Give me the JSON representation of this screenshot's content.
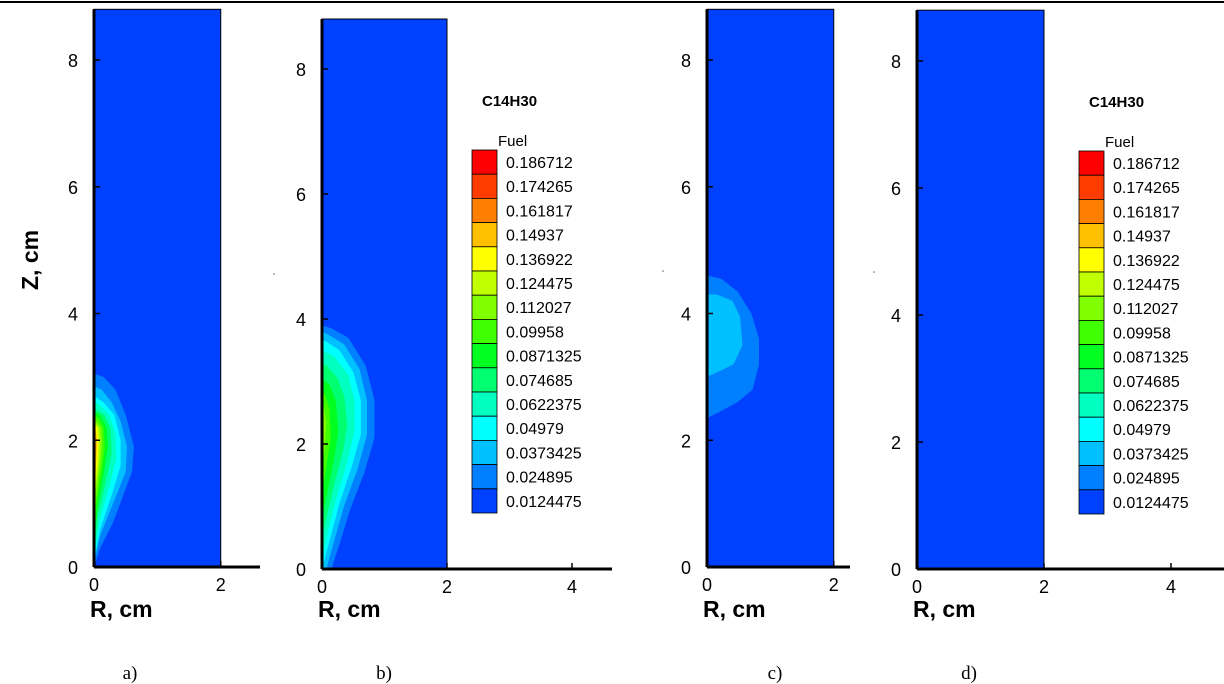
{
  "chart_data": {
    "type": "heatmap",
    "variable": "C14H30",
    "legend_subtitle": "Fuel",
    "legend_levels": [
      "0.186712",
      "0.174265",
      "0.161817",
      "0.14937",
      "0.136922",
      "0.124475",
      "0.112027",
      "0.09958",
      "0.0871325",
      "0.074685",
      "0.0622375",
      "0.04979",
      "0.0373425",
      "0.024895",
      "0.0124475"
    ],
    "legend_colors": [
      "#ff0000",
      "#ff3c00",
      "#ff8000",
      "#ffc000",
      "#ffff00",
      "#c0ff00",
      "#80ff00",
      "#40ff00",
      "#00ff20",
      "#00ff70",
      "#00ffc0",
      "#00ffff",
      "#00c0ff",
      "#0080ff",
      "#0040ff"
    ],
    "background_color": "#0040ff",
    "panels": [
      {
        "caption": "a)",
        "xlabel": "R, cm",
        "ylabel": "Z, cm",
        "xlim": [
          0,
          2.3
        ],
        "ylim": [
          0,
          8.8
        ],
        "domain_r": [
          0,
          2
        ],
        "xticks": [
          "0",
          "2"
        ],
        "yticks": [
          "0",
          "2",
          "4",
          "6",
          "8"
        ],
        "legend": false,
        "contours": [
          {
            "level": 0.0124475,
            "pts": [
              [
                0,
                0
              ],
              [
                0.15,
                0.2
              ],
              [
                0.4,
                0.5
              ],
              [
                0.52,
                0.9
              ],
              [
                0.7,
                1.4
              ],
              [
                0.74,
                1.9
              ],
              [
                0.58,
                2.5
              ],
              [
                0.42,
                2.9
              ],
              [
                0.2,
                3.2
              ],
              [
                0,
                3.3
              ]
            ]
          },
          {
            "level": 0.024895,
            "pts": [
              [
                0,
                0
              ],
              [
                0.1,
                0.3
              ],
              [
                0.3,
                0.7
              ],
              [
                0.45,
                1.1
              ],
              [
                0.6,
                1.5
              ],
              [
                0.63,
                1.9
              ],
              [
                0.5,
                2.4
              ],
              [
                0.34,
                2.8
              ],
              [
                0.15,
                3.0
              ],
              [
                0,
                3.05
              ]
            ]
          },
          {
            "level": 0.0373425,
            "pts": [
              [
                0,
                0.05
              ],
              [
                0.1,
                0.5
              ],
              [
                0.3,
                1.0
              ],
              [
                0.5,
                1.5
              ],
              [
                0.52,
                1.9
              ],
              [
                0.42,
                2.3
              ],
              [
                0.28,
                2.6
              ],
              [
                0.12,
                2.8
              ],
              [
                0,
                2.85
              ]
            ]
          },
          {
            "level": 0.04979,
            "pts": [
              [
                0,
                0.1
              ],
              [
                0.1,
                0.6
              ],
              [
                0.3,
                1.2
              ],
              [
                0.42,
                1.6
              ],
              [
                0.42,
                2.0
              ],
              [
                0.32,
                2.4
              ],
              [
                0.15,
                2.6
              ],
              [
                0,
                2.7
              ]
            ]
          },
          {
            "level": 0.0622375,
            "pts": [
              [
                0,
                0.15
              ],
              [
                0.08,
                0.7
              ],
              [
                0.25,
                1.3
              ],
              [
                0.35,
                1.7
              ],
              [
                0.34,
                2.1
              ],
              [
                0.24,
                2.4
              ],
              [
                0.1,
                2.55
              ],
              [
                0,
                2.6
              ]
            ]
          },
          {
            "level": 0.074685,
            "pts": [
              [
                0,
                0.2
              ],
              [
                0.06,
                0.8
              ],
              [
                0.2,
                1.4
              ],
              [
                0.28,
                1.8
              ],
              [
                0.26,
                2.2
              ],
              [
                0.16,
                2.4
              ],
              [
                0,
                2.5
              ]
            ]
          },
          {
            "level": 0.0871325,
            "pts": [
              [
                0,
                0.25
              ],
              [
                0.05,
                0.9
              ],
              [
                0.16,
                1.5
              ],
              [
                0.22,
                1.9
              ],
              [
                0.2,
                2.2
              ],
              [
                0.1,
                2.4
              ],
              [
                0,
                2.45
              ]
            ]
          },
          {
            "level": 0.09958,
            "pts": [
              [
                0,
                0.3
              ],
              [
                0.04,
                1.0
              ],
              [
                0.13,
                1.55
              ],
              [
                0.17,
                1.9
              ],
              [
                0.15,
                2.2
              ],
              [
                0.07,
                2.35
              ],
              [
                0,
                2.4
              ]
            ]
          },
          {
            "level": 0.112027,
            "pts": [
              [
                0,
                0.35
              ],
              [
                0.03,
                1.1
              ],
              [
                0.1,
                1.6
              ],
              [
                0.13,
                1.95
              ],
              [
                0.11,
                2.2
              ],
              [
                0,
                2.35
              ]
            ]
          },
          {
            "level": 0.124475,
            "pts": [
              [
                0,
                0.45
              ],
              [
                0.02,
                1.2
              ],
              [
                0.08,
                1.65
              ],
              [
                0.1,
                2.0
              ],
              [
                0.08,
                2.2
              ],
              [
                0,
                2.3
              ]
            ]
          },
          {
            "level": 0.136922,
            "pts": [
              [
                0,
                0.6
              ],
              [
                0.02,
                1.3
              ],
              [
                0.06,
                1.7
              ],
              [
                0.07,
                2.0
              ],
              [
                0.05,
                2.2
              ],
              [
                0,
                2.25
              ]
            ]
          },
          {
            "level": 0.14937,
            "pts": [
              [
                0,
                0.8
              ],
              [
                0.02,
                1.4
              ],
              [
                0.04,
                1.75
              ],
              [
                0.05,
                2.0
              ],
              [
                0.03,
                2.15
              ],
              [
                0,
                2.2
              ]
            ]
          },
          {
            "level": 0.161817,
            "pts": [
              [
                0,
                1.2
              ],
              [
                0.02,
                1.6
              ],
              [
                0.03,
                1.9
              ],
              [
                0.01,
                2.1
              ],
              [
                0,
                2.1
              ]
            ]
          }
        ]
      },
      {
        "caption": "b)",
        "xlabel": "R, cm",
        "ylabel": "",
        "xlim": [
          0,
          5.2
        ],
        "ylim": [
          0,
          8.8
        ],
        "domain_r": [
          0,
          2
        ],
        "xticks": [
          "0",
          "2",
          "4"
        ],
        "yticks": [
          "0",
          "2",
          "4",
          "6",
          "8"
        ],
        "legend": true,
        "contours": [
          {
            "level": 0.0124475,
            "pts": [
              [
                0.25,
                0
              ],
              [
                0.4,
                0.35
              ],
              [
                0.6,
                0.9
              ],
              [
                0.82,
                1.5
              ],
              [
                0.96,
                2.1
              ],
              [
                0.95,
                2.7
              ],
              [
                0.8,
                3.3
              ],
              [
                0.5,
                3.8
              ],
              [
                0.2,
                3.95
              ],
              [
                0,
                4.0
              ]
            ]
          },
          {
            "level": 0.024895,
            "pts": [
              [
                0.15,
                0
              ],
              [
                0.28,
                0.4
              ],
              [
                0.45,
                0.95
              ],
              [
                0.68,
                1.55
              ],
              [
                0.84,
                2.1
              ],
              [
                0.84,
                2.7
              ],
              [
                0.7,
                3.25
              ],
              [
                0.42,
                3.7
              ],
              [
                0.15,
                3.85
              ],
              [
                0,
                3.9
              ]
            ]
          },
          {
            "level": 0.0373425,
            "pts": [
              [
                0.07,
                0
              ],
              [
                0.18,
                0.4
              ],
              [
                0.35,
                1.0
              ],
              [
                0.57,
                1.6
              ],
              [
                0.72,
                2.15
              ],
              [
                0.72,
                2.7
              ],
              [
                0.6,
                3.2
              ],
              [
                0.35,
                3.6
              ],
              [
                0.1,
                3.75
              ],
              [
                0,
                3.8
              ]
            ]
          },
          {
            "level": 0.04979,
            "pts": [
              [
                0,
                0
              ],
              [
                0.12,
                0.45
              ],
              [
                0.28,
                1.05
              ],
              [
                0.48,
                1.65
              ],
              [
                0.62,
                2.15
              ],
              [
                0.62,
                2.7
              ],
              [
                0.5,
                3.15
              ],
              [
                0.28,
                3.5
              ],
              [
                0.05,
                3.65
              ],
              [
                0,
                3.65
              ]
            ]
          },
          {
            "level": 0.0622375,
            "pts": [
              [
                0,
                0.15
              ],
              [
                0.08,
                0.55
              ],
              [
                0.22,
                1.1
              ],
              [
                0.4,
                1.7
              ],
              [
                0.52,
                2.2
              ],
              [
                0.52,
                2.7
              ],
              [
                0.42,
                3.1
              ],
              [
                0.2,
                3.4
              ],
              [
                0,
                3.5
              ]
            ]
          },
          {
            "level": 0.074685,
            "pts": [
              [
                0,
                0.5
              ],
              [
                0.1,
                0.95
              ],
              [
                0.22,
                1.45
              ],
              [
                0.34,
                1.9
              ],
              [
                0.4,
                2.3
              ],
              [
                0.36,
                2.75
              ],
              [
                0.25,
                3.05
              ],
              [
                0.08,
                3.25
              ],
              [
                0,
                3.3
              ]
            ]
          },
          {
            "level": 0.0871325,
            "pts": [
              [
                0,
                0.8
              ],
              [
                0.1,
                1.3
              ],
              [
                0.2,
                1.8
              ],
              [
                0.26,
                2.2
              ],
              [
                0.22,
                2.7
              ],
              [
                0.12,
                2.95
              ],
              [
                0,
                3.05
              ]
            ]
          },
          {
            "level": 0.09958,
            "pts": [
              [
                0,
                1.2
              ],
              [
                0.08,
                1.7
              ],
              [
                0.14,
                2.1
              ],
              [
                0.12,
                2.55
              ],
              [
                0.05,
                2.8
              ],
              [
                0,
                2.85
              ]
            ]
          },
          {
            "level": 0.112027,
            "pts": [
              [
                0,
                1.6
              ],
              [
                0.05,
                2.0
              ],
              [
                0.07,
                2.35
              ],
              [
                0.03,
                2.6
              ],
              [
                0,
                2.65
              ]
            ]
          }
        ]
      },
      {
        "caption": "c)",
        "xlabel": "R, cm",
        "ylabel": "",
        "xlim": [
          0,
          2.3
        ],
        "ylim": [
          0,
          8.8
        ],
        "domain_r": [
          0,
          2
        ],
        "xticks": [
          "0",
          "2"
        ],
        "yticks": [
          "0",
          "2",
          "4",
          "6",
          "8"
        ],
        "legend": false,
        "contours": [
          {
            "level": 0.0124475,
            "pts": [
              [
                0.22,
                0
              ],
              [
                0.28,
                0.8
              ],
              [
                0.4,
                1.6
              ],
              [
                0.62,
                2.0
              ],
              [
                0.88,
                2.3
              ],
              [
                1.0,
                2.8
              ],
              [
                1.0,
                3.4
              ],
              [
                0.9,
                3.9
              ],
              [
                0.7,
                4.35
              ],
              [
                0.4,
                4.75
              ],
              [
                0,
                4.85
              ]
            ]
          },
          {
            "level": 0.024895,
            "pts": [
              [
                0,
                2.35
              ],
              [
                0.2,
                2.45
              ],
              [
                0.48,
                2.6
              ],
              [
                0.72,
                2.8
              ],
              [
                0.82,
                3.2
              ],
              [
                0.82,
                3.6
              ],
              [
                0.7,
                4.0
              ],
              [
                0.48,
                4.35
              ],
              [
                0.22,
                4.55
              ],
              [
                0,
                4.6
              ]
            ]
          },
          {
            "level": 0.0373425,
            "pts": [
              [
                0,
                3.0
              ],
              [
                0.22,
                3.1
              ],
              [
                0.42,
                3.2
              ],
              [
                0.56,
                3.5
              ],
              [
                0.52,
                3.95
              ],
              [
                0.4,
                4.2
              ],
              [
                0.15,
                4.3
              ],
              [
                0,
                4.3
              ]
            ]
          }
        ]
      },
      {
        "caption": "d)",
        "xlabel": "R, cm",
        "ylabel": "",
        "xlim": [
          0,
          5.2
        ],
        "ylim": [
          0,
          8.8
        ],
        "domain_r": [
          0,
          2
        ],
        "xticks": [
          "0",
          "2",
          "4"
        ],
        "yticks": [
          "0",
          "2",
          "4",
          "6",
          "8"
        ],
        "legend": true,
        "contours": []
      }
    ]
  }
}
